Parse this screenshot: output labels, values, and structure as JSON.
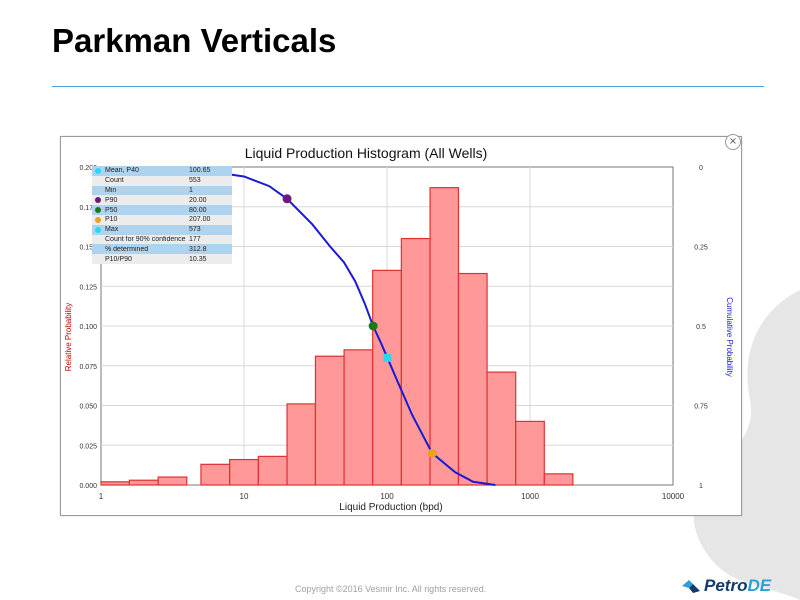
{
  "slide": {
    "title": "Parkman Verticals",
    "copyright": "Copyright ©2016 Vesmir Inc. All rights reserved.",
    "logo": {
      "part1": "Petro",
      "part2": "DE"
    },
    "close_icon": "×"
  },
  "colors": {
    "bar_fill": "#ff9999",
    "bar_stroke": "#e03030",
    "curve": "#1a1ad6",
    "accent_line": "#4aa3d8",
    "left_axis_label": "#cc0000",
    "right_axis_label": "#1a1ad6"
  },
  "stats_table": [
    {
      "label": "Mean, P40",
      "value": "100.65",
      "marker": "#2bd7ee"
    },
    {
      "label": "Count",
      "value": "553",
      "marker": null
    },
    {
      "label": "Min",
      "value": "1",
      "marker": null
    },
    {
      "label": "P90",
      "value": "20.00",
      "marker": "#6a1a7a"
    },
    {
      "label": "P50",
      "value": "80.00",
      "marker": "#1a7a1a"
    },
    {
      "label": "P10",
      "value": "207.00",
      "marker": "#f0a020"
    },
    {
      "label": "Max",
      "value": "573",
      "marker": "#2bd7ee"
    },
    {
      "label": "Count for 90% confidence",
      "value": "177",
      "marker": null
    },
    {
      "label": "% determined",
      "value": "312.8",
      "marker": null
    },
    {
      "label": "P10/P90",
      "value": "10.35",
      "marker": null
    }
  ],
  "chart_data": {
    "type": "bar",
    "title": "Liquid Production Histogram (All Wells)",
    "xlabel": "Liquid Production (bpd)",
    "ylabel": "Relative Probability",
    "y2label": "Cumulative Probability",
    "xscale": "log",
    "xlim": [
      1,
      10000
    ],
    "ylim": [
      0,
      0.2
    ],
    "y2lim": [
      0,
      1
    ],
    "y2_reversed": true,
    "x_ticks": [
      "1",
      "10",
      "100",
      "1000",
      "10000"
    ],
    "y_ticks": [
      "0.000",
      "0.025",
      "0.050",
      "0.075",
      "0.100",
      "0.125",
      "0.150",
      "0.175",
      "0.200"
    ],
    "y2_ticks": [
      "0",
      "0.25",
      "0.5",
      "0.75",
      "1"
    ],
    "grid": true,
    "bins": [
      {
        "from": 1,
        "to": 1.58,
        "value": 0.002
      },
      {
        "from": 1.58,
        "to": 2.51,
        "value": 0.003
      },
      {
        "from": 2.51,
        "to": 3.98,
        "value": 0.005
      },
      {
        "from": 5,
        "to": 7.94,
        "value": 0.013
      },
      {
        "from": 7.94,
        "to": 12.6,
        "value": 0.016
      },
      {
        "from": 12.6,
        "to": 20,
        "value": 0.018
      },
      {
        "from": 20,
        "to": 31.6,
        "value": 0.051
      },
      {
        "from": 31.6,
        "to": 50.1,
        "value": 0.081
      },
      {
        "from": 50.1,
        "to": 79.4,
        "value": 0.085
      },
      {
        "from": 79.4,
        "to": 126,
        "value": 0.135
      },
      {
        "from": 126,
        "to": 200,
        "value": 0.155
      },
      {
        "from": 200,
        "to": 316,
        "value": 0.187
      },
      {
        "from": 316,
        "to": 501,
        "value": 0.133
      },
      {
        "from": 501,
        "to": 794,
        "value": 0.071
      },
      {
        "from": 794,
        "to": 1259,
        "value": 0.04
      },
      {
        "from": 1259,
        "to": 1995,
        "value": 0.007
      }
    ],
    "cumulative_curve": [
      {
        "x": 1,
        "y": 0.0
      },
      {
        "x": 3,
        "y": 0.005
      },
      {
        "x": 5,
        "y": 0.01
      },
      {
        "x": 10,
        "y": 0.03
      },
      {
        "x": 15,
        "y": 0.06
      },
      {
        "x": 20,
        "y": 0.1
      },
      {
        "x": 30,
        "y": 0.18
      },
      {
        "x": 40,
        "y": 0.25
      },
      {
        "x": 50,
        "y": 0.3
      },
      {
        "x": 60,
        "y": 0.36
      },
      {
        "x": 70,
        "y": 0.43
      },
      {
        "x": 80,
        "y": 0.5
      },
      {
        "x": 90,
        "y": 0.55
      },
      {
        "x": 100.65,
        "y": 0.6
      },
      {
        "x": 120,
        "y": 0.68
      },
      {
        "x": 150,
        "y": 0.78
      },
      {
        "x": 207,
        "y": 0.9
      },
      {
        "x": 300,
        "y": 0.96
      },
      {
        "x": 400,
        "y": 0.99
      },
      {
        "x": 573,
        "y": 1.0
      }
    ],
    "markers": [
      {
        "name": "P90",
        "x": 20,
        "y": 0.1,
        "color": "#6a1a7a"
      },
      {
        "name": "P50",
        "x": 80,
        "y": 0.5,
        "color": "#1a7a1a"
      },
      {
        "name": "Mean, P40",
        "x": 100.65,
        "y": 0.6,
        "color": "#2bd7ee"
      },
      {
        "name": "P10",
        "x": 207,
        "y": 0.9,
        "color": "#f0a020"
      }
    ]
  }
}
